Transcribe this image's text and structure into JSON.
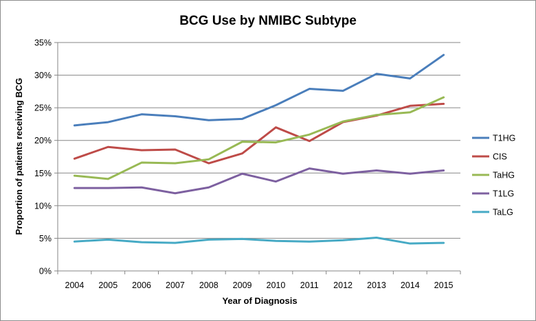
{
  "chart_data": {
    "type": "line",
    "title": "BCG Use by NMIBC Subtype",
    "xlabel": "Year of Diagnosis",
    "ylabel": "Proportion of patients receiving BCG",
    "categories": [
      "2004",
      "2005",
      "2006",
      "2007",
      "2008",
      "2009",
      "2010",
      "2011",
      "2012",
      "2013",
      "2014",
      "2015"
    ],
    "ylim": [
      0,
      35
    ],
    "yticks": [
      0,
      5,
      10,
      15,
      20,
      25,
      30,
      35
    ],
    "ytick_labels": [
      "0%",
      "5%",
      "10%",
      "15%",
      "20%",
      "25%",
      "30%",
      "35%"
    ],
    "grid": true,
    "legend_position": "right",
    "series": [
      {
        "name": "T1HG",
        "color": "#4a7ebb",
        "values": [
          22.3,
          22.8,
          24.0,
          23.7,
          23.1,
          23.3,
          25.4,
          27.9,
          27.6,
          30.2,
          29.5,
          33.1
        ]
      },
      {
        "name": "CIS",
        "color": "#be4b48",
        "values": [
          17.2,
          19.0,
          18.5,
          18.6,
          16.5,
          18.0,
          22.0,
          19.9,
          22.8,
          23.8,
          25.3,
          25.6
        ]
      },
      {
        "name": "TaHG",
        "color": "#98b954",
        "values": [
          14.6,
          14.1,
          16.6,
          16.5,
          17.1,
          19.8,
          19.7,
          20.9,
          22.9,
          23.9,
          24.3,
          26.6
        ]
      },
      {
        "name": "T1LG",
        "color": "#7d60a0",
        "values": [
          12.7,
          12.7,
          12.8,
          11.9,
          12.8,
          14.9,
          13.7,
          15.7,
          14.9,
          15.4,
          14.9,
          15.4
        ]
      },
      {
        "name": "TaLG",
        "color": "#46aac5",
        "values": [
          4.5,
          4.8,
          4.4,
          4.3,
          4.8,
          4.9,
          4.6,
          4.5,
          4.7,
          5.1,
          4.2,
          4.3
        ]
      }
    ]
  }
}
